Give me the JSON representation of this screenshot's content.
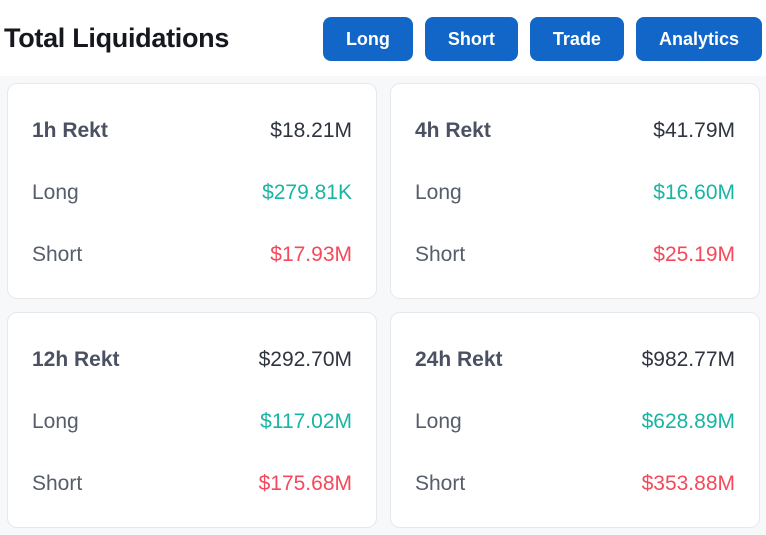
{
  "colors": {
    "button_blue": "#1166c8",
    "long_green": "#18b5a4",
    "short_red": "#f5485a",
    "title_text": "#16181d",
    "card_label": "#4b5162",
    "card_total": "#2f343f",
    "side_label": "#565d6b",
    "card_border": "#e7e8ea",
    "section_bg": "#f7f8f9"
  },
  "header": {
    "title": "Total Liquidations",
    "buttons": [
      {
        "label": "Long"
      },
      {
        "label": "Short"
      },
      {
        "label": "Trade"
      },
      {
        "label": "Analytics"
      }
    ]
  },
  "cards": [
    {
      "period": "1h Rekt",
      "total": "$18.21M",
      "long_label": "Long",
      "long_value": "$279.81K",
      "short_label": "Short",
      "short_value": "$17.93M"
    },
    {
      "period": "4h Rekt",
      "total": "$41.79M",
      "long_label": "Long",
      "long_value": "$16.60M",
      "short_label": "Short",
      "short_value": "$25.19M"
    },
    {
      "period": "12h Rekt",
      "total": "$292.70M",
      "long_label": "Long",
      "long_value": "$117.02M",
      "short_label": "Short",
      "short_value": "$175.68M"
    },
    {
      "period": "24h Rekt",
      "total": "$982.77M",
      "long_label": "Long",
      "long_value": "$628.89M",
      "short_label": "Short",
      "short_value": "$353.88M"
    }
  ]
}
